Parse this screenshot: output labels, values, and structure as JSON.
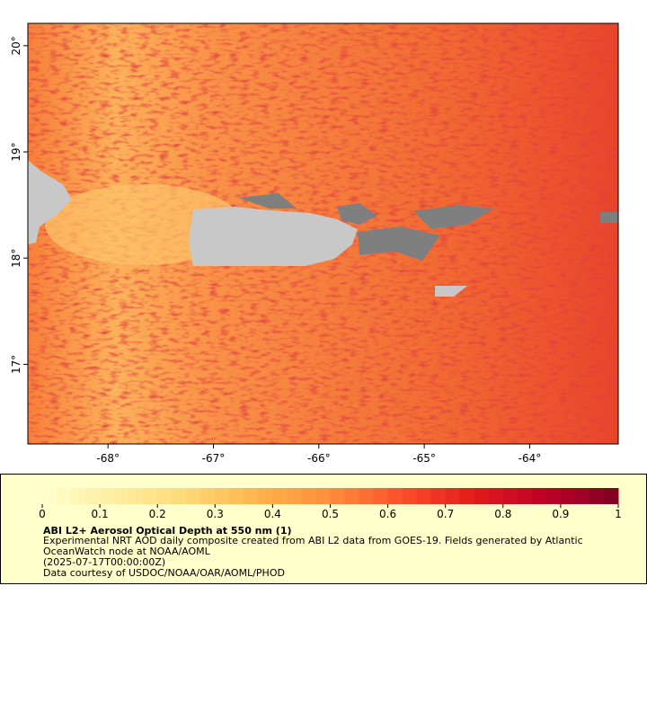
{
  "map": {
    "xlim": [
      -68.76,
      -63.16
    ],
    "ylim": [
      16.25,
      20.21
    ],
    "xticks": [
      {
        "value": -68,
        "label": "-68°"
      },
      {
        "value": -67,
        "label": "-67°"
      },
      {
        "value": -66,
        "label": "-66°"
      },
      {
        "value": -65,
        "label": "-65°"
      },
      {
        "value": -64,
        "label": "-64°"
      }
    ],
    "yticks": [
      {
        "value": 17,
        "label": "17°"
      },
      {
        "value": 18,
        "label": "18°"
      },
      {
        "value": 19,
        "label": "19°"
      },
      {
        "value": 20,
        "label": "20°"
      }
    ]
  },
  "colorbar": {
    "range": [
      0,
      1
    ],
    "ticks": [
      0,
      0.1,
      0.2,
      0.3,
      0.4,
      0.5,
      0.6,
      0.7,
      0.8,
      0.9,
      1
    ],
    "colors": [
      "#ffffcc",
      "#ffeda0",
      "#fed976",
      "#feb24c",
      "#fd8d3c",
      "#fc4e2a",
      "#e31a1c",
      "#bd0026",
      "#800026"
    ]
  },
  "legend": {
    "title": "ABI L2+ Aerosol Optical Depth at 550 nm (1)",
    "lines": [
      "Experimental NRT AOD daily composite created from ABI L2 data from GOES-19. Fields generated by Atlantic",
      "OceanWatch node at NOAA/AOML",
      "(2025-07-17T00:00:00Z)",
      "Data courtesy of USDOC/NOAA/OAR/AOML/PHOD"
    ]
  }
}
